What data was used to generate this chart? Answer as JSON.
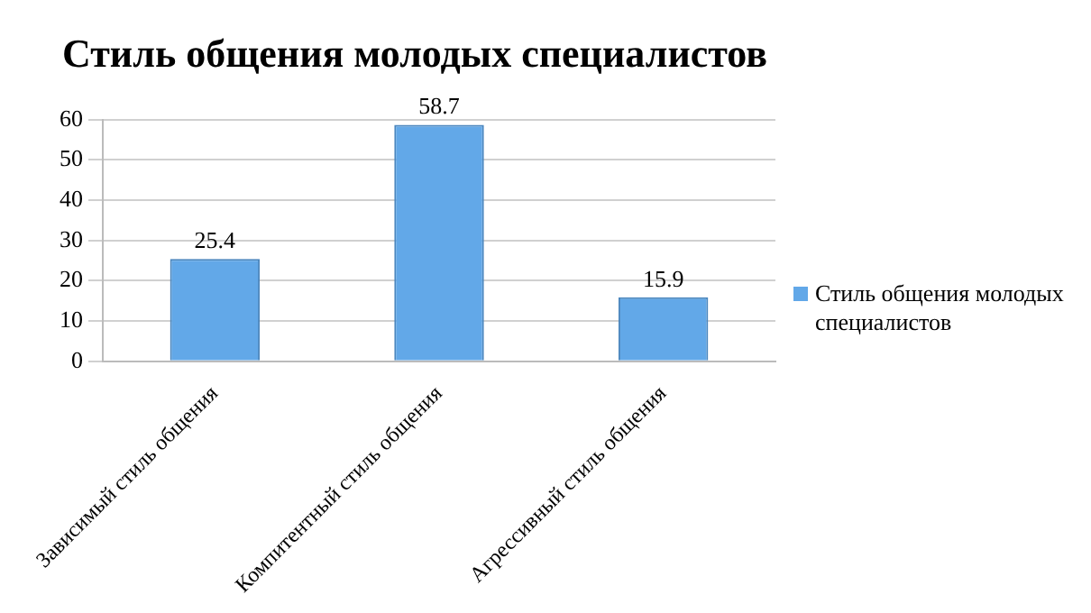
{
  "chart_data": {
    "type": "bar",
    "title": "Стиль общения молодых специалистов",
    "categories": [
      "Зависимый стиль общения",
      "Компитентный стиль общения",
      "Агрессивный стиль общения"
    ],
    "series": [
      {
        "name": "Стиль общения молодых специалистов",
        "color": "#62a8e8",
        "values": [
          25.4,
          58.7,
          15.9
        ]
      }
    ],
    "ylim": [
      0,
      60
    ],
    "yticks": [
      0,
      10,
      20,
      30,
      40,
      50,
      60
    ],
    "grid": "y",
    "legend": "right",
    "data_labels": true
  }
}
